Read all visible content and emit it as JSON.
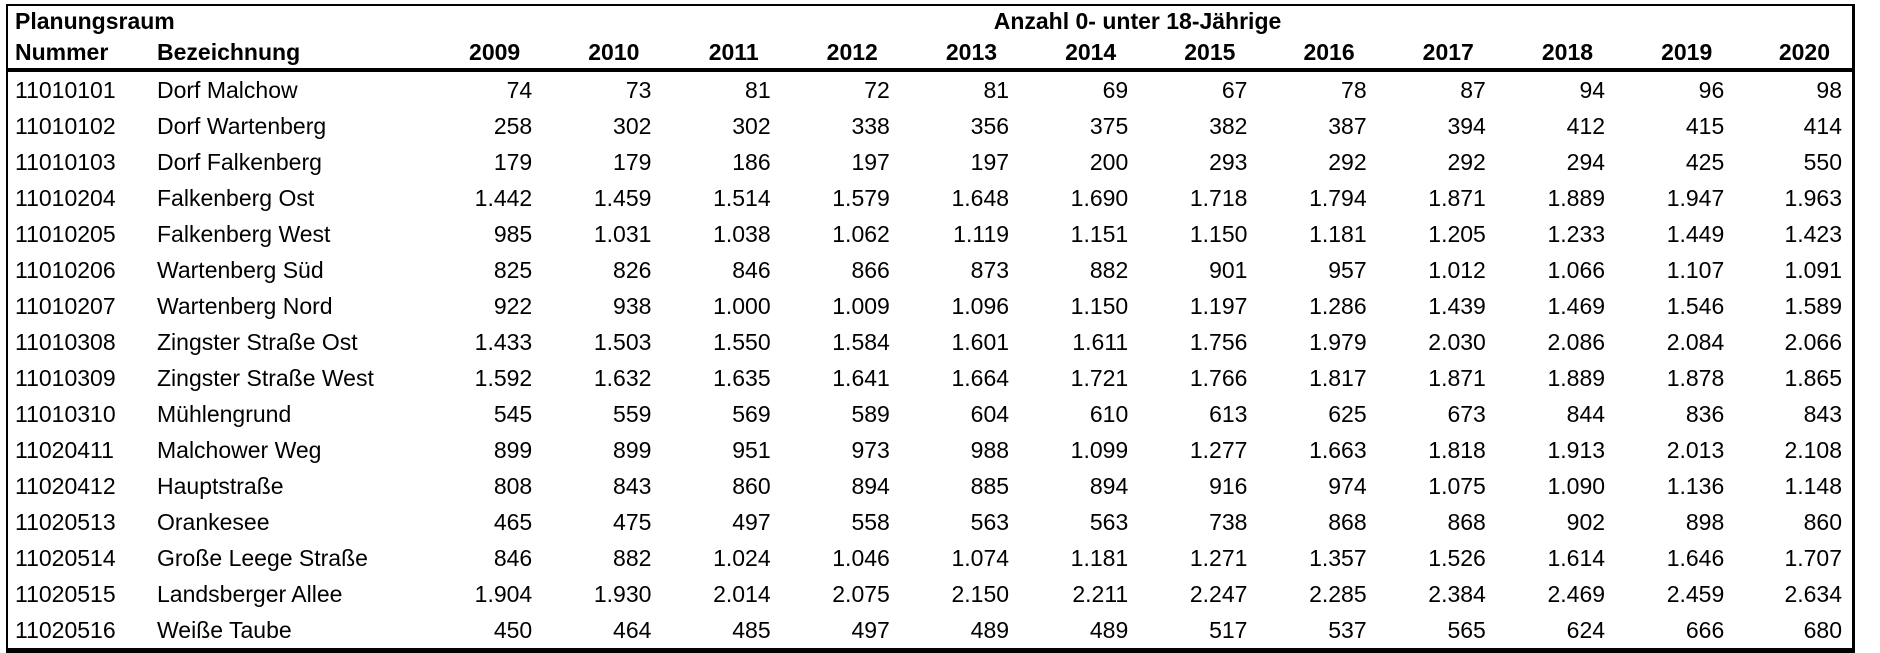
{
  "colors": {
    "text": "#000000",
    "background": "#ffffff",
    "border": "#000000"
  },
  "table": {
    "group_header": {
      "planungsraum": "Planungsraum",
      "anzahl": "Anzahl 0- unter 18-Jährige"
    },
    "column_headers": {
      "nummer": "Nummer",
      "bezeichnung": "Bezeichnung"
    },
    "years": [
      "2009",
      "2010",
      "2011",
      "2012",
      "2013",
      "2014",
      "2015",
      "2016",
      "2017",
      "2018",
      "2019",
      "2020"
    ],
    "rows": [
      {
        "nummer": "11010101",
        "bezeichnung": "Dorf Malchow",
        "values": [
          "74",
          "73",
          "81",
          "72",
          "81",
          "69",
          "67",
          "78",
          "87",
          "94",
          "96",
          "98"
        ]
      },
      {
        "nummer": "11010102",
        "bezeichnung": "Dorf Wartenberg",
        "values": [
          "258",
          "302",
          "302",
          "338",
          "356",
          "375",
          "382",
          "387",
          "394",
          "412",
          "415",
          "414"
        ]
      },
      {
        "nummer": "11010103",
        "bezeichnung": "Dorf Falkenberg",
        "values": [
          "179",
          "179",
          "186",
          "197",
          "197",
          "200",
          "293",
          "292",
          "292",
          "294",
          "425",
          "550"
        ]
      },
      {
        "nummer": "11010204",
        "bezeichnung": "Falkenberg Ost",
        "values": [
          "1.442",
          "1.459",
          "1.514",
          "1.579",
          "1.648",
          "1.690",
          "1.718",
          "1.794",
          "1.871",
          "1.889",
          "1.947",
          "1.963"
        ]
      },
      {
        "nummer": "11010205",
        "bezeichnung": "Falkenberg West",
        "values": [
          "985",
          "1.031",
          "1.038",
          "1.062",
          "1.119",
          "1.151",
          "1.150",
          "1.181",
          "1.205",
          "1.233",
          "1.449",
          "1.423"
        ]
      },
      {
        "nummer": "11010206",
        "bezeichnung": "Wartenberg Süd",
        "values": [
          "825",
          "826",
          "846",
          "866",
          "873",
          "882",
          "901",
          "957",
          "1.012",
          "1.066",
          "1.107",
          "1.091"
        ]
      },
      {
        "nummer": "11010207",
        "bezeichnung": "Wartenberg Nord",
        "values": [
          "922",
          "938",
          "1.000",
          "1.009",
          "1.096",
          "1.150",
          "1.197",
          "1.286",
          "1.439",
          "1.469",
          "1.546",
          "1.589"
        ]
      },
      {
        "nummer": "11010308",
        "bezeichnung": "Zingster Straße Ost",
        "values": [
          "1.433",
          "1.503",
          "1.550",
          "1.584",
          "1.601",
          "1.611",
          "1.756",
          "1.979",
          "2.030",
          "2.086",
          "2.084",
          "2.066"
        ]
      },
      {
        "nummer": "11010309",
        "bezeichnung": "Zingster Straße West",
        "values": [
          "1.592",
          "1.632",
          "1.635",
          "1.641",
          "1.664",
          "1.721",
          "1.766",
          "1.817",
          "1.871",
          "1.889",
          "1.878",
          "1.865"
        ]
      },
      {
        "nummer": "11010310",
        "bezeichnung": "Mühlengrund",
        "values": [
          "545",
          "559",
          "569",
          "589",
          "604",
          "610",
          "613",
          "625",
          "673",
          "844",
          "836",
          "843"
        ]
      },
      {
        "nummer": "11020411",
        "bezeichnung": "Malchower Weg",
        "values": [
          "899",
          "899",
          "951",
          "973",
          "988",
          "1.099",
          "1.277",
          "1.663",
          "1.818",
          "1.913",
          "2.013",
          "2.108"
        ]
      },
      {
        "nummer": "11020412",
        "bezeichnung": "Hauptstraße",
        "values": [
          "808",
          "843",
          "860",
          "894",
          "885",
          "894",
          "916",
          "974",
          "1.075",
          "1.090",
          "1.136",
          "1.148"
        ]
      },
      {
        "nummer": "11020513",
        "bezeichnung": "Orankesee",
        "values": [
          "465",
          "475",
          "497",
          "558",
          "563",
          "563",
          "738",
          "868",
          "868",
          "902",
          "898",
          "860"
        ]
      },
      {
        "nummer": "11020514",
        "bezeichnung": "Große Leege Straße",
        "values": [
          "846",
          "882",
          "1.024",
          "1.046",
          "1.074",
          "1.181",
          "1.271",
          "1.357",
          "1.526",
          "1.614",
          "1.646",
          "1.707"
        ]
      },
      {
        "nummer": "11020515",
        "bezeichnung": "Landsberger Allee",
        "values": [
          "1.904",
          "1.930",
          "2.014",
          "2.075",
          "2.150",
          "2.211",
          "2.247",
          "2.285",
          "2.384",
          "2.469",
          "2.459",
          "2.634"
        ]
      },
      {
        "nummer": "11020516",
        "bezeichnung": "Weiße Taube",
        "values": [
          "450",
          "464",
          "485",
          "497",
          "489",
          "489",
          "517",
          "537",
          "565",
          "624",
          "666",
          "680"
        ]
      }
    ]
  }
}
